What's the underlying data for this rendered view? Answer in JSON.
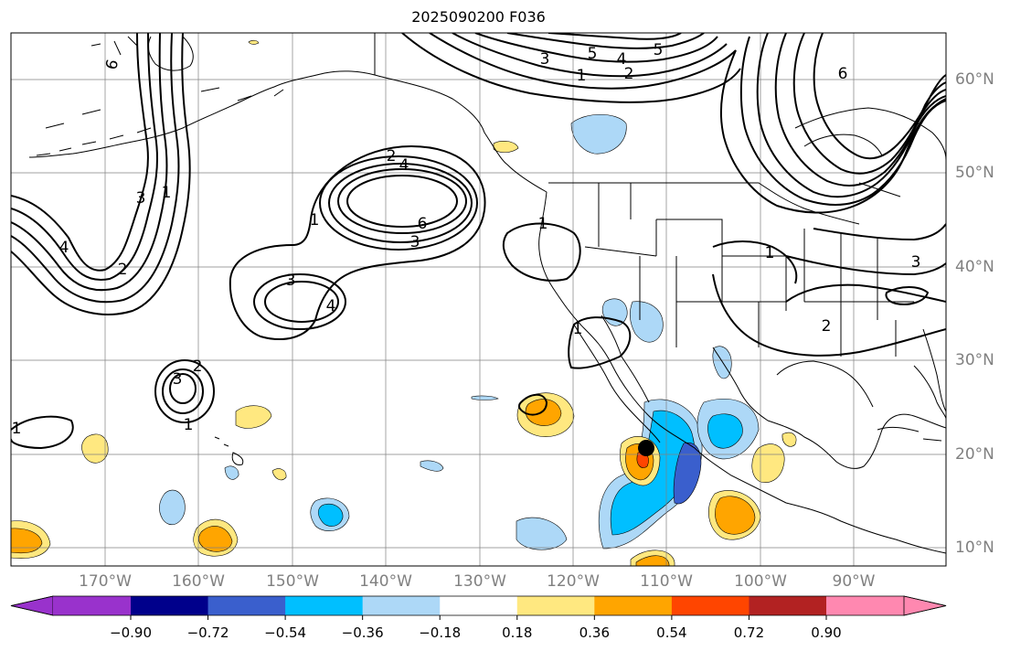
{
  "title": "2025090200 F036",
  "lon_labels": [
    "170°W",
    "160°W",
    "150°W",
    "140°W",
    "130°W",
    "120°W",
    "110°W",
    "100°W",
    "90°W"
  ],
  "lat_labels": [
    "60°N",
    "50°N",
    "40°N",
    "30°N",
    "20°N",
    "10°N"
  ],
  "colorbar": {
    "ticks": [
      "−0.90",
      "−0.72",
      "−0.54",
      "−0.36",
      "−0.18",
      "0.18",
      "0.36",
      "0.54",
      "0.72",
      "0.90"
    ],
    "colors": [
      "#9932cc",
      "#00008b",
      "#3a5fcd",
      "#00bfff",
      "#add8f7",
      "#ffffff",
      "#ffe880",
      "#ffa500",
      "#ff4500",
      "#b22222",
      "#ff88b0"
    ]
  },
  "contour_labels": [
    "6",
    "5",
    "4",
    "3",
    "2",
    "1",
    "2",
    "4",
    "6",
    "3",
    "1",
    "3",
    "4",
    "2",
    "3",
    "1",
    "1",
    "1",
    "1",
    "2",
    "3",
    "6",
    "5",
    "1",
    "2",
    "3",
    "4",
    "1"
  ],
  "marker": "storm-center-dot"
}
